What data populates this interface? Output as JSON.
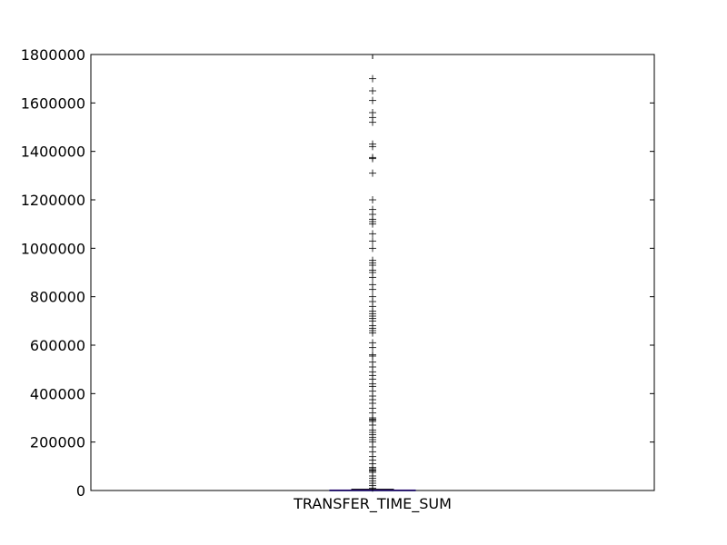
{
  "chart_data": {
    "type": "box",
    "categories": [
      "TRANSFER_TIME_SUM"
    ],
    "ylim": [
      0,
      1800000
    ],
    "yticks": [
      0,
      200000,
      400000,
      600000,
      800000,
      1000000,
      1200000,
      1400000,
      1600000,
      1800000
    ],
    "ytick_labels": [
      "0",
      "200000",
      "400000",
      "600000",
      "800000",
      "1000000",
      "1200000",
      "1400000",
      "1600000",
      "1800000"
    ],
    "grid": false,
    "colors": {
      "box": "#0000ff",
      "median": "#ff0000",
      "outlier": "#000000",
      "axes": "#000000"
    },
    "box": {
      "q1": 0,
      "median": 500,
      "q3": 2000,
      "whisker_low": 0,
      "whisker_high": 5000
    },
    "outliers": [
      10000,
      20000,
      30000,
      40000,
      50000,
      60000,
      75000,
      80000,
      85000,
      90000,
      95000,
      110000,
      125000,
      140000,
      160000,
      180000,
      200000,
      210000,
      220000,
      230000,
      240000,
      250000,
      270000,
      285000,
      290000,
      295000,
      300000,
      320000,
      340000,
      360000,
      375000,
      390000,
      410000,
      430000,
      440000,
      460000,
      475000,
      490000,
      510000,
      530000,
      555000,
      560000,
      590000,
      610000,
      650000,
      660000,
      670000,
      680000,
      700000,
      710000,
      720000,
      730000,
      740000,
      760000,
      780000,
      800000,
      830000,
      850000,
      880000,
      900000,
      910000,
      930000,
      940000,
      950000,
      1000000,
      1030000,
      1060000,
      1100000,
      1110000,
      1120000,
      1140000,
      1160000,
      1200000,
      1310000,
      1370000,
      1375000,
      1420000,
      1430000,
      1520000,
      1540000,
      1560000,
      1610000,
      1650000,
      1700000
    ]
  }
}
